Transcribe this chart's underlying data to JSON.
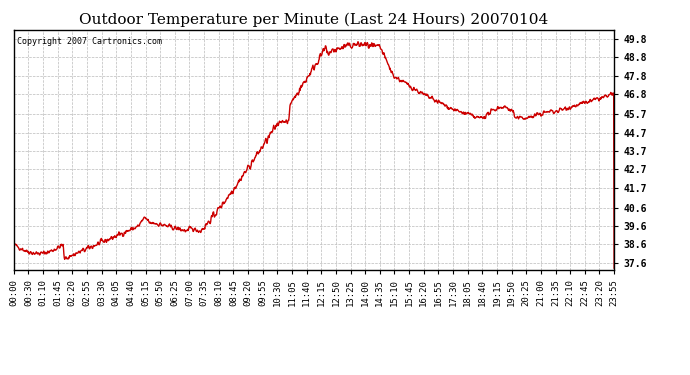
{
  "title": "Outdoor Temperature per Minute (Last 24 Hours) 20070104",
  "copyright_text": "Copyright 2007 Cartronics.com",
  "line_color": "#cc0000",
  "background_color": "#ffffff",
  "plot_bg_color": "#ffffff",
  "grid_color": "#bbbbbb",
  "yticks": [
    37.6,
    38.6,
    39.6,
    40.6,
    41.7,
    42.7,
    43.7,
    44.7,
    45.7,
    46.8,
    47.8,
    48.8,
    49.8
  ],
  "ylim": [
    37.2,
    50.3
  ],
  "xtick_labels": [
    "00:00",
    "00:30",
    "01:10",
    "01:45",
    "02:20",
    "02:55",
    "03:30",
    "04:05",
    "04:40",
    "05:15",
    "05:50",
    "06:25",
    "07:00",
    "07:35",
    "08:10",
    "08:45",
    "09:20",
    "09:55",
    "10:30",
    "11:05",
    "11:40",
    "12:15",
    "12:50",
    "13:25",
    "14:00",
    "14:35",
    "15:10",
    "15:45",
    "16:20",
    "16:55",
    "17:30",
    "18:05",
    "18:40",
    "19:15",
    "19:50",
    "20:25",
    "21:00",
    "21:35",
    "22:10",
    "22:45",
    "23:20",
    "23:55"
  ],
  "line_width": 1.0,
  "title_fontsize": 11,
  "tick_fontsize": 6.5,
  "copyright_fontsize": 6
}
